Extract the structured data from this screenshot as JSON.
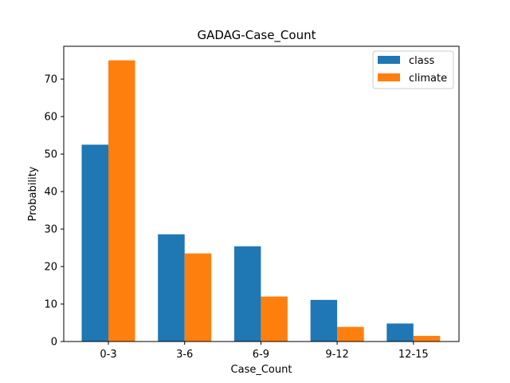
{
  "chart_data": {
    "type": "bar",
    "title": "GADAG-Case_Count",
    "xlabel": "Case_Count",
    "ylabel": "Probability",
    "categories": [
      "0-3",
      "3-6",
      "6-9",
      "9-12",
      "12-15"
    ],
    "series": [
      {
        "name": "class",
        "color": "#1f77b4",
        "values": [
          52.5,
          28.6,
          25.4,
          11.1,
          4.8
        ]
      },
      {
        "name": "climate",
        "color": "#ff7f0e",
        "values": [
          75.0,
          23.5,
          12.0,
          3.9,
          1.5
        ]
      }
    ],
    "ylim": [
      0,
      78.75
    ],
    "yticks": [
      0,
      10,
      20,
      30,
      40,
      50,
      60,
      70
    ],
    "grid": false,
    "legend_position": "top-right"
  }
}
